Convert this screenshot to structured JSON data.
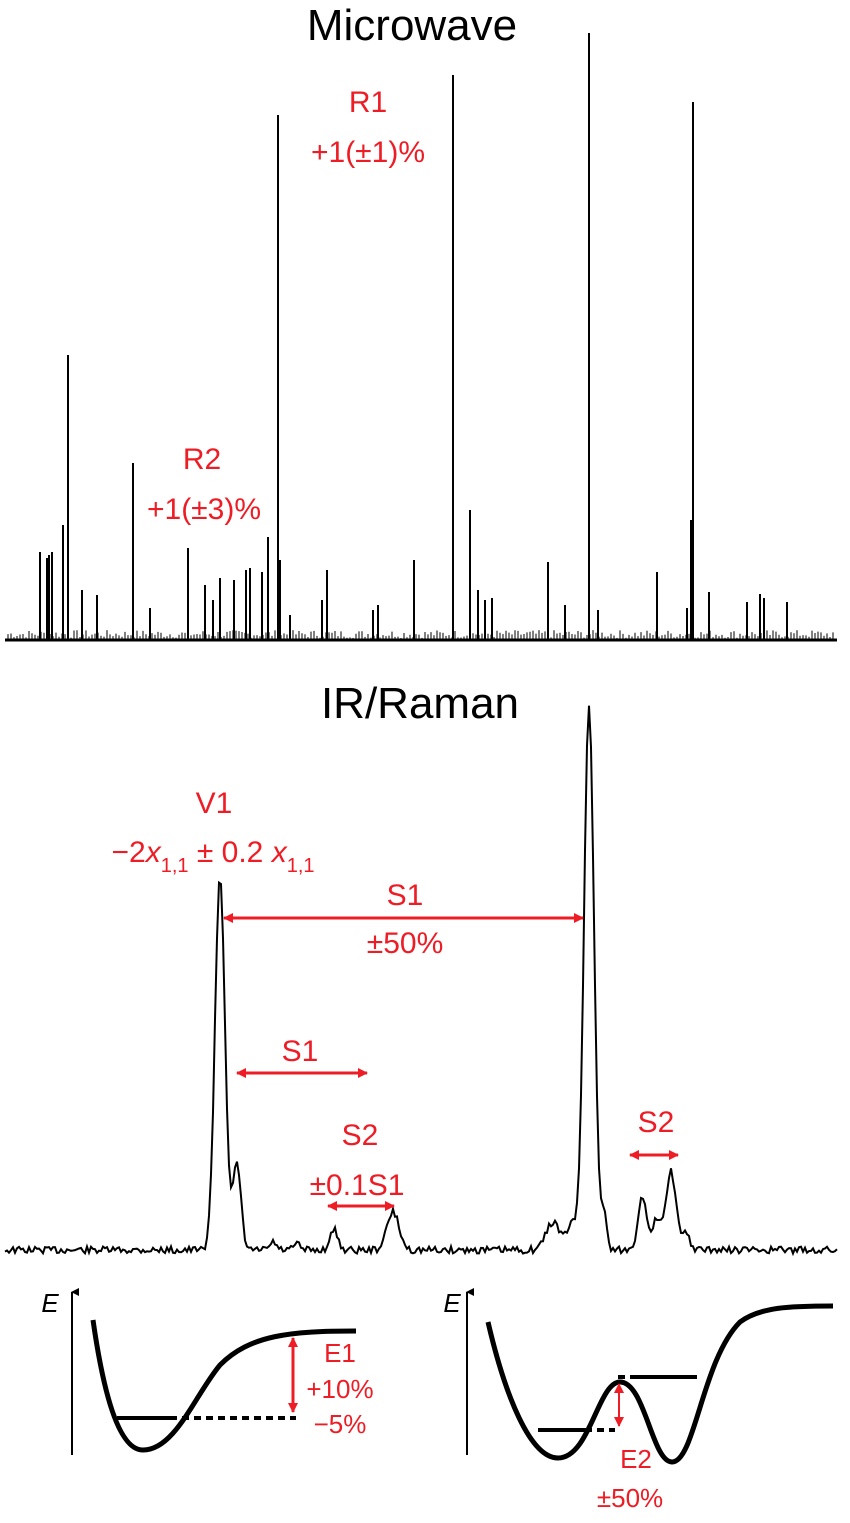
{
  "colors": {
    "annotation": "#ee1c25",
    "trace": "#000000",
    "background": "#ffffff"
  },
  "microwave": {
    "title": "Microwave",
    "r1_label": "R1",
    "r1_value": "+1(±1)%",
    "r2_label": "R2",
    "r2_value": "+1(±3)%"
  },
  "ir_raman": {
    "title": "IR/Raman",
    "v1_label": "V1",
    "v1_formula_prefix": "−2",
    "v1_formula_x": "x",
    "v1_formula_sub": "1,1",
    "v1_formula_mid": " ± 0.2 ",
    "v1_formula_x2": "x",
    "v1_formula_sub2": "1,1",
    "s1_main_label": "S1",
    "s1_main_value": "±50%",
    "s1_short_label": "S1",
    "s2_left_label": "S2",
    "s2_left_value": "±0.1S1",
    "s2_right_label": "S2"
  },
  "energy": {
    "left_axis_label": "E",
    "e1_label": "E1",
    "e1_plus": "+10%",
    "e1_minus": "−5%",
    "right_axis_label": "E",
    "e2_label": "E2",
    "e2_value": "±50%"
  }
}
